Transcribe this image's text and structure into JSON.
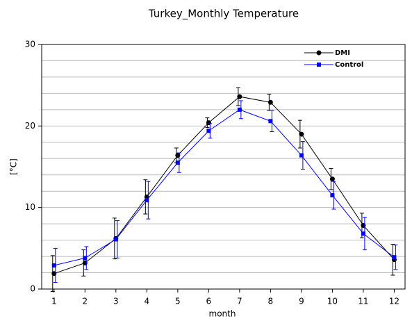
{
  "chart_data": {
    "type": "line",
    "title": "Turkey_Monthly Temperature",
    "x_label": "month",
    "y_label": "[°C]",
    "x": [
      1,
      2,
      3,
      4,
      5,
      6,
      7,
      8,
      9,
      10,
      11,
      12
    ],
    "xlim": [
      0.6,
      12.35
    ],
    "xticks": [
      1,
      2,
      3,
      4,
      5,
      6,
      7,
      8,
      9,
      10,
      11,
      12
    ],
    "ylim": [
      0,
      30
    ],
    "yticks": [
      0,
      10,
      20,
      30
    ],
    "grid_yticks": [
      2,
      4,
      6,
      8,
      12,
      14,
      16,
      18,
      22,
      24,
      26,
      28
    ],
    "grid": true,
    "legend": "upper right",
    "series": [
      {
        "name": "DMI",
        "color": "#000000",
        "marker": "circle",
        "values": [
          1.9,
          3.2,
          6.2,
          11.3,
          16.4,
          20.4,
          23.6,
          22.9,
          19.0,
          13.5,
          7.8,
          3.6
        ],
        "errors": [
          2.2,
          1.6,
          2.5,
          2.1,
          0.9,
          0.6,
          1.1,
          1.0,
          1.7,
          1.3,
          1.5,
          1.9
        ]
      },
      {
        "name": "Control",
        "color": "#0000ff",
        "marker": "square",
        "values": [
          2.9,
          3.8,
          6.1,
          10.9,
          15.5,
          19.4,
          22.0,
          20.6,
          16.4,
          11.5,
          6.8,
          3.9
        ],
        "errors": [
          2.1,
          1.4,
          2.3,
          2.3,
          1.2,
          0.9,
          1.1,
          1.3,
          1.7,
          1.7,
          2.0,
          1.5
        ]
      }
    ]
  }
}
